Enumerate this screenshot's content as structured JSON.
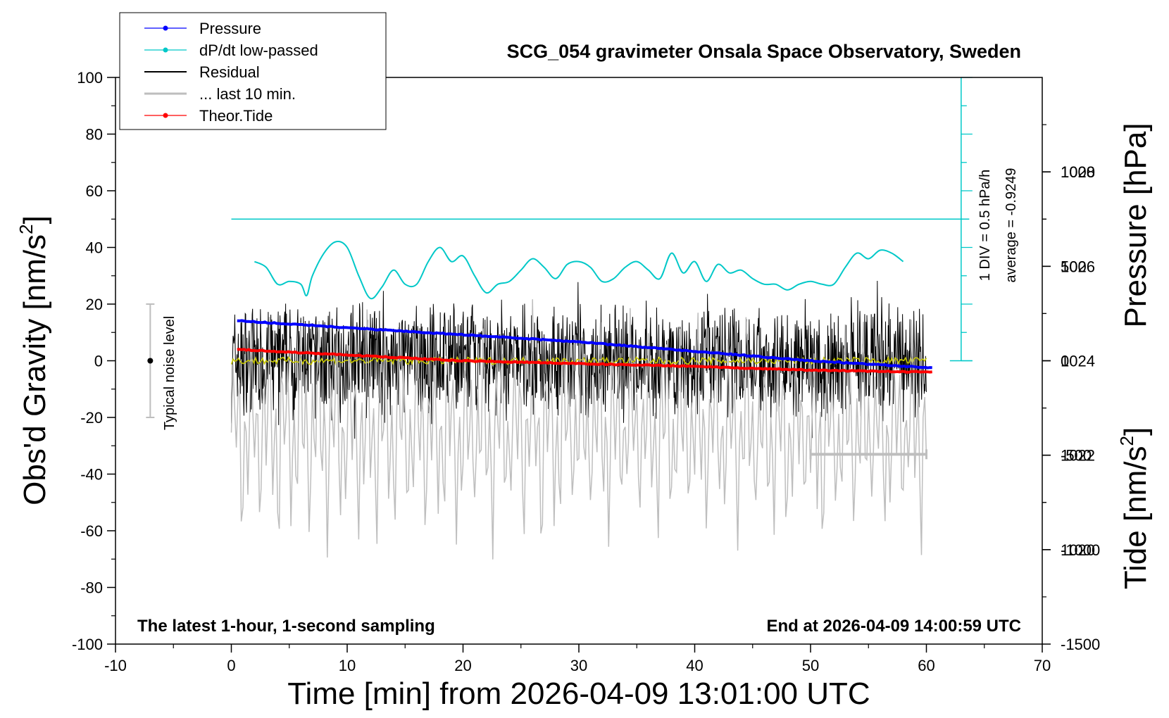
{
  "chart_data": {
    "type": "line",
    "title": "SCG_054 gravimeter Onsala Space Observatory, Sweden",
    "xlabel": "Time [min] from 2026-04-09 13:01:00 UTC",
    "ylabel_left": "Obs'd Gravity [nm/s",
    "ylabel_left_sup": "2",
    "ylabel_left_close": "]",
    "ylabel_right_top": "Pressure [hPa]",
    "ylabel_right_bottom": "Tide [nm/s",
    "ylabel_right_bottom_sup": "2",
    "ylabel_right_bottom_close": "]",
    "xlim": [
      -10,
      70
    ],
    "ylim": [
      -100,
      100
    ],
    "pressure_ylim": [
      1018,
      1030
    ],
    "tide_ylim": [
      -1500,
      1500
    ],
    "x_ticks": [
      "-10",
      "0",
      "10",
      "20",
      "30",
      "40",
      "50",
      "60",
      "70"
    ],
    "y_ticks": [
      "100",
      "80",
      "60",
      "40",
      "20",
      "0",
      "-20",
      "-40",
      "-60",
      "-80",
      "-100"
    ],
    "pressure_ticks": [
      "1020",
      "1022",
      "1024",
      "1026",
      "1028"
    ],
    "tide_ticks": [
      "1000",
      "500",
      "0",
      "-500",
      "-1000",
      "-1500"
    ],
    "legend": [
      {
        "label": "Pressure",
        "color": "#0000ff",
        "marker": true
      },
      {
        "label": "dP/dt low-passed",
        "color": "#00c8c8",
        "marker": true
      },
      {
        "label": "Residual",
        "color": "#000000",
        "marker": false
      },
      {
        "label": "... last 10 min.",
        "color": "#bebebe",
        "marker": false
      },
      {
        "label": "Theor.Tide",
        "color": "#ff0000",
        "marker": true
      }
    ],
    "legend_position": "top-left",
    "annotations": {
      "bottom_left": "The latest 1-hour, 1-second sampling",
      "bottom_right": "End at 2026-04-09 14:00:59 UTC",
      "noise_label": "Typical noise level",
      "dpdt_scale": "1 DIV = 0.5 hPa/h",
      "dpdt_average": "average = -0.9249"
    },
    "noise_bar": {
      "x": -7,
      "center": 0,
      "low": -20,
      "high": 20
    },
    "last10_bar": {
      "x_start": 50,
      "x_end": 60,
      "y": -33
    },
    "series": [
      {
        "name": "Pressure",
        "axis": "pressure",
        "color": "#0000ff",
        "x": [
          0.5,
          10,
          20,
          30,
          40,
          50,
          60.5
        ],
        "values": [
          1024.85,
          1024.7,
          1024.55,
          1024.4,
          1024.2,
          1024.0,
          1023.85
        ]
      },
      {
        "name": "dP/dt low-passed",
        "axis": "gravity",
        "color": "#00c8c8",
        "x": [
          2,
          3,
          4,
          5,
          6,
          6.5,
          7,
          8,
          9,
          10,
          11,
          12,
          13,
          14,
          15,
          16,
          17,
          18,
          19,
          20,
          21,
          22,
          23,
          24,
          25,
          26,
          27,
          28,
          29,
          30,
          31,
          32,
          33,
          34,
          35,
          36,
          37,
          38,
          39,
          40,
          41,
          42,
          43,
          44,
          45,
          46,
          47,
          48,
          49,
          50,
          51,
          52,
          53,
          54,
          55,
          56,
          57,
          58
        ],
        "values": [
          35,
          33,
          27,
          28,
          27,
          23,
          30,
          38,
          42,
          40,
          30,
          22,
          26,
          32,
          27,
          27,
          35,
          40,
          35,
          37,
          30,
          24,
          27,
          28,
          32,
          36,
          33,
          29,
          34,
          35,
          33,
          28,
          29,
          33,
          35,
          32,
          29,
          38,
          31,
          35,
          28,
          34,
          31,
          32,
          29,
          27,
          27,
          25,
          27,
          28,
          27,
          27,
          33,
          38,
          36,
          39,
          38,
          35
        ]
      },
      {
        "name": "Residual",
        "axis": "gravity",
        "color": "#000000",
        "x_start": 0,
        "x_end": 60,
        "typical_amplitude": 20
      },
      {
        "name": "... last 10 min.",
        "axis": "tide",
        "color": "#bebebe",
        "x_start": 0,
        "x_end": 60,
        "center": -380,
        "typical_amplitude": 700
      },
      {
        "name": "Theor.Tide",
        "axis": "tide",
        "color": "#ff0000",
        "x": [
          0.5,
          10,
          20,
          30,
          40,
          50,
          60.5
        ],
        "values": [
          60,
          30,
          0,
          -15,
          -30,
          -50,
          -60
        ]
      }
    ]
  }
}
